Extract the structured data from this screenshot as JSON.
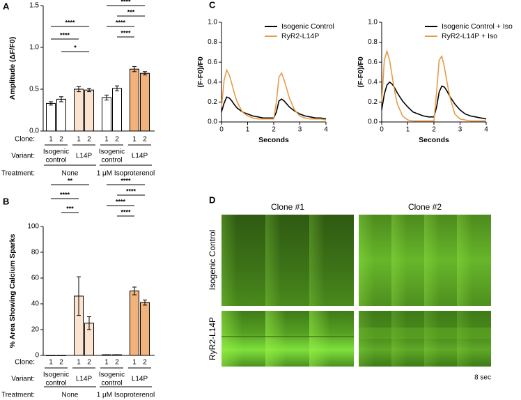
{
  "chart_data": [
    {
      "panel": "A",
      "type": "bar",
      "ylabel": "Amplitude (ΔF/F0)",
      "categories": [
        "1",
        "2",
        "1",
        "2",
        "1",
        "2",
        "1",
        "2"
      ],
      "values": [
        0.33,
        0.38,
        0.5,
        0.49,
        0.4,
        0.51,
        0.74,
        0.69
      ],
      "errors": [
        0.02,
        0.03,
        0.03,
        0.02,
        0.03,
        0.03,
        0.03,
        0.02
      ],
      "colors": [
        "#ffffff",
        "#ffffff",
        "#fbe3cf",
        "#fbe3cf",
        "#ffffff",
        "#ffffff",
        "#f2b27c",
        "#f2b27c"
      ],
      "ylim": [
        0,
        1.5
      ],
      "yticks": [
        {
          "value": 0,
          "label": "0.0"
        },
        {
          "value": 0.5,
          "label": "0.5"
        },
        {
          "value": 1.0,
          "label": "1.0"
        },
        {
          "value": 1.5,
          "label": "1.5"
        }
      ],
      "row_labels": [
        "Clone:",
        "Variant:",
        "Treatment:"
      ],
      "variants": [
        {
          "label": [
            "Isogenic",
            "control"
          ],
          "span": [
            0,
            1
          ]
        },
        {
          "label": [
            "L14P"
          ],
          "span": [
            2,
            3
          ]
        },
        {
          "label": [
            "Isogenic",
            "control"
          ],
          "span": [
            4,
            5
          ]
        },
        {
          "label": [
            "L14P"
          ],
          "span": [
            6,
            7
          ]
        }
      ],
      "treatments": [
        {
          "label": "None",
          "span": [
            0,
            3
          ]
        },
        {
          "label": "1 μM Isoproterenol",
          "span": [
            4,
            7
          ]
        }
      ],
      "brackets": [
        {
          "text": "****",
          "pair": [
            0,
            3
          ]
        },
        {
          "text": "****",
          "pair": [
            0,
            2
          ]
        },
        {
          "text": "*",
          "pair": [
            1,
            3
          ]
        },
        {
          "text": "****",
          "pair": [
            4,
            7
          ]
        },
        {
          "text": "***",
          "pair": [
            5,
            7
          ]
        },
        {
          "text": "****",
          "pair": [
            4,
            6
          ]
        },
        {
          "text": "****",
          "pair": [
            5,
            6
          ]
        }
      ]
    },
    {
      "panel": "B",
      "type": "bar",
      "ylabel": "% Area Showing Calcium Sparks",
      "categories": [
        "1",
        "2",
        "1",
        "2",
        "1",
        "2",
        "1",
        "2"
      ],
      "values": [
        0,
        0,
        46,
        25,
        0.5,
        0.5,
        50,
        41
      ],
      "errors": [
        0,
        0,
        15,
        5,
        0,
        0,
        3,
        2
      ],
      "colors": [
        "#ffffff",
        "#ffffff",
        "#fbe3cf",
        "#fbe3cf",
        "#ffffff",
        "#ffffff",
        "#f2b27c",
        "#f2b27c"
      ],
      "ylim": [
        0,
        100
      ],
      "yticks": [
        0,
        20,
        40,
        60,
        80,
        100
      ],
      "row_labels": [
        "Clone:",
        "Variant:",
        "Treatment:"
      ],
      "variants": [
        {
          "label": [
            "Isogenic",
            "control"
          ],
          "span": [
            0,
            1
          ]
        },
        {
          "label": [
            "L14P"
          ],
          "span": [
            2,
            3
          ]
        },
        {
          "label": [
            "Isogenic",
            "control"
          ],
          "span": [
            4,
            5
          ]
        },
        {
          "label": [
            "L14P"
          ],
          "span": [
            6,
            7
          ]
        }
      ],
      "treatments": [
        {
          "label": "None",
          "span": [
            0,
            3
          ]
        },
        {
          "label": "1 μM Isoproterenol",
          "span": [
            4,
            7
          ]
        }
      ],
      "brackets": [
        {
          "text": "**",
          "pair": [
            0,
            3
          ]
        },
        {
          "text": "****",
          "pair": [
            0,
            2
          ]
        },
        {
          "text": "***",
          "pair": [
            1,
            2
          ]
        },
        {
          "text": "****",
          "pair": [
            4,
            7
          ]
        },
        {
          "text": "****",
          "pair": [
            5,
            7
          ]
        },
        {
          "text": "****",
          "pair": [
            4,
            6
          ]
        },
        {
          "text": "****",
          "pair": [
            5,
            6
          ]
        }
      ]
    },
    {
      "panel": "C",
      "type": "line",
      "xlabel": "Seconds",
      "ylabel": "(F-F0)/F0",
      "x": [
        0,
        0.1,
        0.2,
        0.3,
        0.4,
        0.5,
        0.6,
        0.8,
        1.0,
        1.2,
        1.4,
        1.6,
        1.8,
        2.0,
        2.1,
        2.2,
        2.3,
        2.4,
        2.5,
        2.6,
        2.8,
        3.0,
        3.2,
        3.4,
        3.6,
        3.8,
        4.0
      ],
      "series": [
        {
          "name": "Isogenic Control",
          "color": "#000000",
          "values": [
            0.1,
            0.19,
            0.25,
            0.24,
            0.21,
            0.17,
            0.14,
            0.1,
            0.08,
            0.06,
            0.05,
            0.04,
            0.04,
            0.04,
            0.1,
            0.21,
            0.23,
            0.21,
            0.18,
            0.15,
            0.11,
            0.08,
            0.06,
            0.05,
            0.04,
            0.04,
            0.03
          ]
        },
        {
          "name": "RyR2-L14P",
          "color": "#e89b47",
          "values": [
            0.15,
            0.42,
            0.52,
            0.47,
            0.38,
            0.28,
            0.2,
            0.1,
            0.06,
            0.04,
            0.03,
            0.03,
            0.03,
            0.03,
            0.2,
            0.45,
            0.49,
            0.42,
            0.33,
            0.24,
            0.12,
            0.06,
            0.04,
            0.03,
            0.03,
            0.03,
            0.02
          ]
        }
      ],
      "xlim": [
        0,
        4
      ],
      "xticks": [
        0,
        1,
        2,
        3,
        4
      ],
      "ylim": [
        0,
        1.0
      ],
      "yticks": [
        {
          "value": 0,
          "label": "0.0"
        },
        {
          "value": 0.2,
          "label": "0.2"
        },
        {
          "value": 0.4,
          "label": "0.4"
        },
        {
          "value": 0.6,
          "label": "0.6"
        },
        {
          "value": 0.8,
          "label": "0.8"
        },
        {
          "value": 1.0,
          "label": "1.0"
        }
      ],
      "legend": "upper right"
    },
    {
      "type": "line",
      "xlabel": "Seconds",
      "ylabel": "(F-F0)/F0",
      "x": [
        0,
        0.1,
        0.2,
        0.3,
        0.4,
        0.5,
        0.6,
        0.8,
        1.0,
        1.2,
        1.4,
        1.6,
        1.8,
        2.0,
        2.1,
        2.2,
        2.3,
        2.4,
        2.5,
        2.6,
        2.8,
        3.0,
        3.2,
        3.4,
        3.6,
        3.8,
        4.0
      ],
      "series": [
        {
          "name": "Isogenic Control + Iso",
          "color": "#000000",
          "values": [
            0.12,
            0.28,
            0.37,
            0.4,
            0.38,
            0.34,
            0.29,
            0.21,
            0.15,
            0.1,
            0.08,
            0.06,
            0.05,
            0.05,
            0.15,
            0.3,
            0.36,
            0.35,
            0.31,
            0.26,
            0.18,
            0.12,
            0.08,
            0.06,
            0.05,
            0.04,
            0.03
          ]
        },
        {
          "name": "RyR2-L14P + Iso",
          "color": "#e89b47",
          "values": [
            0.2,
            0.62,
            0.71,
            0.62,
            0.46,
            0.3,
            0.18,
            0.06,
            0.02,
            0.01,
            0.01,
            0.01,
            0.01,
            0.01,
            0.3,
            0.62,
            0.66,
            0.55,
            0.4,
            0.26,
            0.08,
            0.03,
            0.02,
            0.01,
            0.01,
            0.01,
            0.01
          ]
        }
      ],
      "xlim": [
        0,
        4
      ],
      "xticks": [
        0,
        1,
        2,
        3,
        4
      ],
      "ylim": [
        0,
        1.0
      ],
      "yticks": [
        {
          "value": 0,
          "label": "0.0"
        },
        {
          "value": 0.2,
          "label": "0.2"
        },
        {
          "value": 0.4,
          "label": "0.4"
        },
        {
          "value": 0.6,
          "label": "0.6"
        },
        {
          "value": 0.8,
          "label": "0.8"
        },
        {
          "value": 1.0,
          "label": "1.0"
        }
      ],
      "legend": "upper right"
    }
  ],
  "image_panel": {
    "panel": "D",
    "columns": [
      "Clone #1",
      "Clone #2"
    ],
    "rows": [
      "Isogenic Control",
      "RyR2-L14P"
    ],
    "scale_label": "8 sec"
  }
}
